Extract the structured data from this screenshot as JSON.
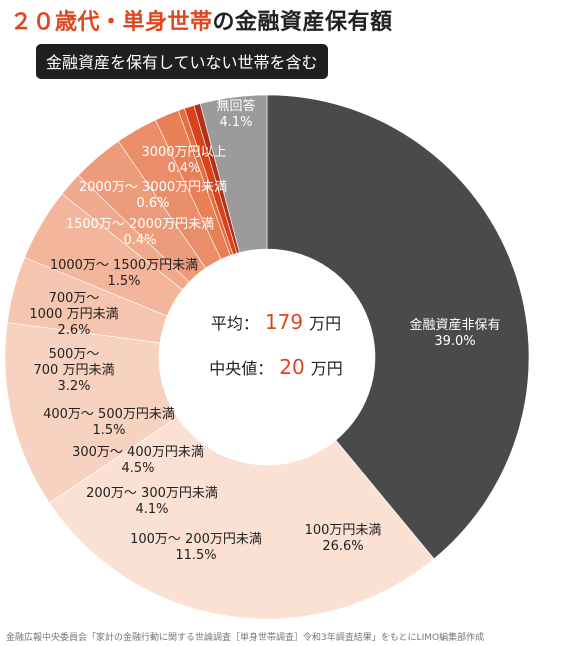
{
  "header": {
    "title_accent": "２０歳代・単身世帯",
    "title_rest": "の金融資産保有額",
    "subtitle": "金融資産を保有していない世帯を含む"
  },
  "center": {
    "avg_label": "平均：",
    "avg_value": "179",
    "avg_unit": "万円",
    "median_label": "中央値：",
    "median_value": "20",
    "median_unit": "万円"
  },
  "footer": "金融広報中央委員会「家計の金融行動に関する世論調査［単身世帯調査］令和3年調査結果」をもとにLIMO編集部作成",
  "chart_data": {
    "type": "pie",
    "donut": true,
    "slices": [
      {
        "name": "金融資産非保有",
        "value": 39.0,
        "label": "39.0%",
        "color": "#4a4a4a"
      },
      {
        "name": "100万円未満",
        "value": 26.6,
        "label": "26.6%",
        "color": "#fbe0d4"
      },
      {
        "name": "100万～ 200万円未満",
        "value": 11.5,
        "label": "11.5%",
        "color": "#f8d2c0"
      },
      {
        "name": "200万～ 300万円未満",
        "value": 4.1,
        "label": "4.1%",
        "color": "#f6c5b0"
      },
      {
        "name": "300万～ 400万円未満",
        "value": 4.5,
        "label": "4.5%",
        "color": "#f3b69d"
      },
      {
        "name": "400万～ 500万円未満",
        "value": 1.5,
        "label": "1.5%",
        "color": "#f0a98c"
      },
      {
        "name": "500万～ 700 万円未満",
        "value": 3.2,
        "label": "3.2%",
        "color": "#ed9c7b"
      },
      {
        "name": "700万～ 1000 万円未満",
        "value": 2.6,
        "label": "2.6%",
        "color": "#ea8e69"
      },
      {
        "name": "1000万～ 1500万円未満",
        "value": 1.5,
        "label": "1.5%",
        "color": "#e87f56"
      },
      {
        "name": "1500万～ 2000万円未満",
        "value": 0.4,
        "label": "0.4%",
        "color": "#e66d40"
      },
      {
        "name": "2000万～ 3000万円未満",
        "value": 0.6,
        "label": "0.6%",
        "color": "#d9431b"
      },
      {
        "name": "3000万円以上",
        "value": 0.4,
        "label": "0.4%",
        "color": "#b5301a"
      },
      {
        "name": "無回答",
        "value": 4.1,
        "label": "4.1%",
        "color": "#9b9b9b"
      }
    ]
  }
}
